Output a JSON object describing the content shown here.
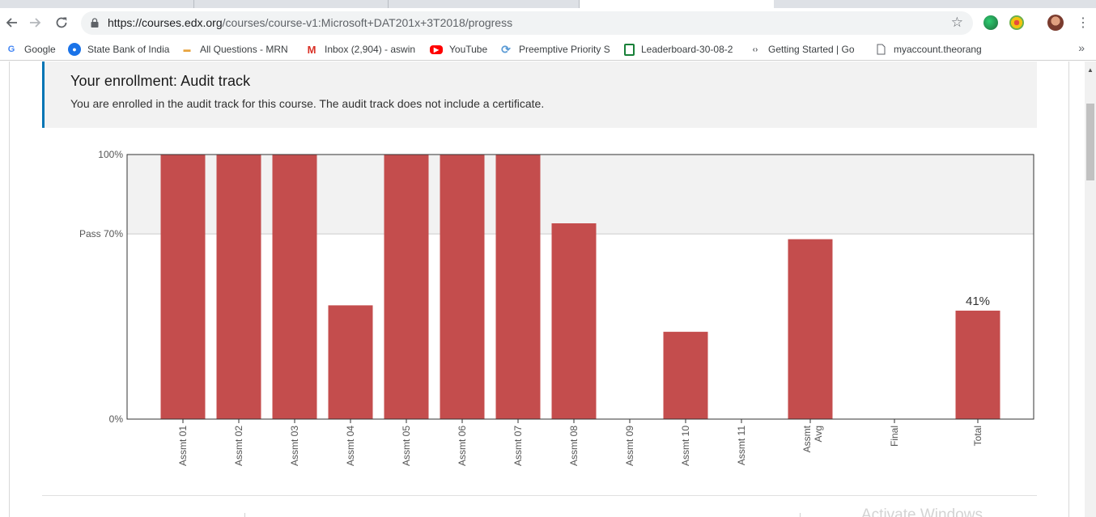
{
  "browser": {
    "url_host": "https://courses.edx.org",
    "url_path": "/courses/course-v1:Microsoft+DAT201x+3T2018/progress"
  },
  "bookmarks": [
    {
      "label": "Google",
      "icon": "google-icon",
      "color": "#4285f4"
    },
    {
      "label": "State Bank of India",
      "icon": "sbi-icon",
      "color": "#1a73e8"
    },
    {
      "label": "All Questions - MRN",
      "icon": "bookmark-icon",
      "color": "#e8a33d"
    },
    {
      "label": "Inbox (2,904) - aswin",
      "icon": "gmail-icon",
      "color": "#d93025"
    },
    {
      "label": "YouTube",
      "icon": "youtube-icon",
      "color": "#ff0000"
    },
    {
      "label": "Preemptive Priority S",
      "icon": "sync-icon",
      "color": "#5b9bd5"
    },
    {
      "label": "Leaderboard-30-08-2",
      "icon": "sheets-icon",
      "color": "#188038"
    },
    {
      "label": "Getting Started | Go",
      "icon": "code-icon",
      "color": "#5f6368"
    },
    {
      "label": "myaccount.theorang",
      "icon": "page-icon",
      "color": "#5f6368"
    }
  ],
  "enrollment": {
    "title": "Your enrollment: Audit track",
    "message": "You are enrolled in the audit track for this course. The audit track does not include a certificate."
  },
  "chart_data": {
    "type": "bar",
    "categories": [
      "Assmt 01",
      "Assmt 02",
      "Assmt 03",
      "Assmt 04",
      "Assmt 05",
      "Assmt 06",
      "Assmt 07",
      "Assmt 08",
      "Assmt 09",
      "Assmt 10",
      "Assmt 11",
      "Assmt Avg",
      "Final",
      "Total"
    ],
    "values": [
      100,
      100,
      100,
      43,
      100,
      100,
      100,
      74,
      0,
      33,
      0,
      68,
      0,
      41
    ],
    "ylim": [
      0,
      100
    ],
    "yticks": [
      "0%",
      "Pass 70%",
      "100%"
    ],
    "pass_threshold": 70,
    "data_labels": {
      "Total": "41%"
    },
    "bar_color": "#c44d4d",
    "pass_band_color": "#f2f2f2"
  },
  "watermark": "Activate Windows"
}
